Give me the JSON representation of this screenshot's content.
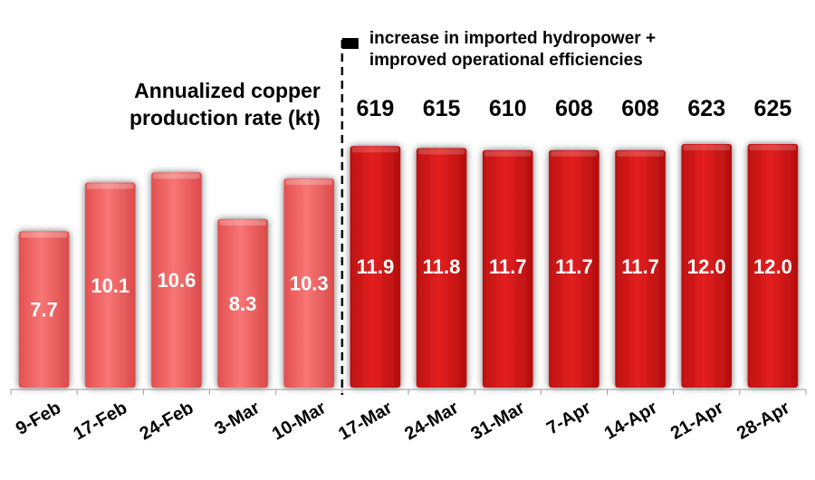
{
  "chart_data": {
    "type": "bar",
    "categories": [
      "9-Feb",
      "17-Feb",
      "24-Feb",
      "3-Mar",
      "10-Mar",
      "17-Mar",
      "24-Mar",
      "31-Mar",
      "7-Apr",
      "14-Apr",
      "21-Apr",
      "28-Apr"
    ],
    "values": [
      7.7,
      10.1,
      10.6,
      8.3,
      10.3,
      11.9,
      11.8,
      11.7,
      11.7,
      11.7,
      12.0,
      12.0
    ],
    "value_labels": [
      "7.7",
      "10.1",
      "10.6",
      "8.3",
      "10.3",
      "11.9",
      "11.8",
      "11.7",
      "11.7",
      "11.7",
      "12.0",
      "12.0"
    ],
    "annualized_rate": [
      "",
      "",
      "",
      "",
      "",
      "619",
      "615",
      "610",
      "608",
      "608",
      "623",
      "625"
    ],
    "annualized_label": "Annualized copper production rate (kt)",
    "annotation": [
      "increase in imported hydropower +",
      "improved operational efficiencies"
    ],
    "marker_before_category": "17-Mar",
    "ylim": [
      0,
      12.4
    ],
    "grid": false,
    "colors": {
      "light": "#f26a6a",
      "dark": "#d81a1a",
      "text": "#000000",
      "bar_text": "#ffffff"
    }
  }
}
